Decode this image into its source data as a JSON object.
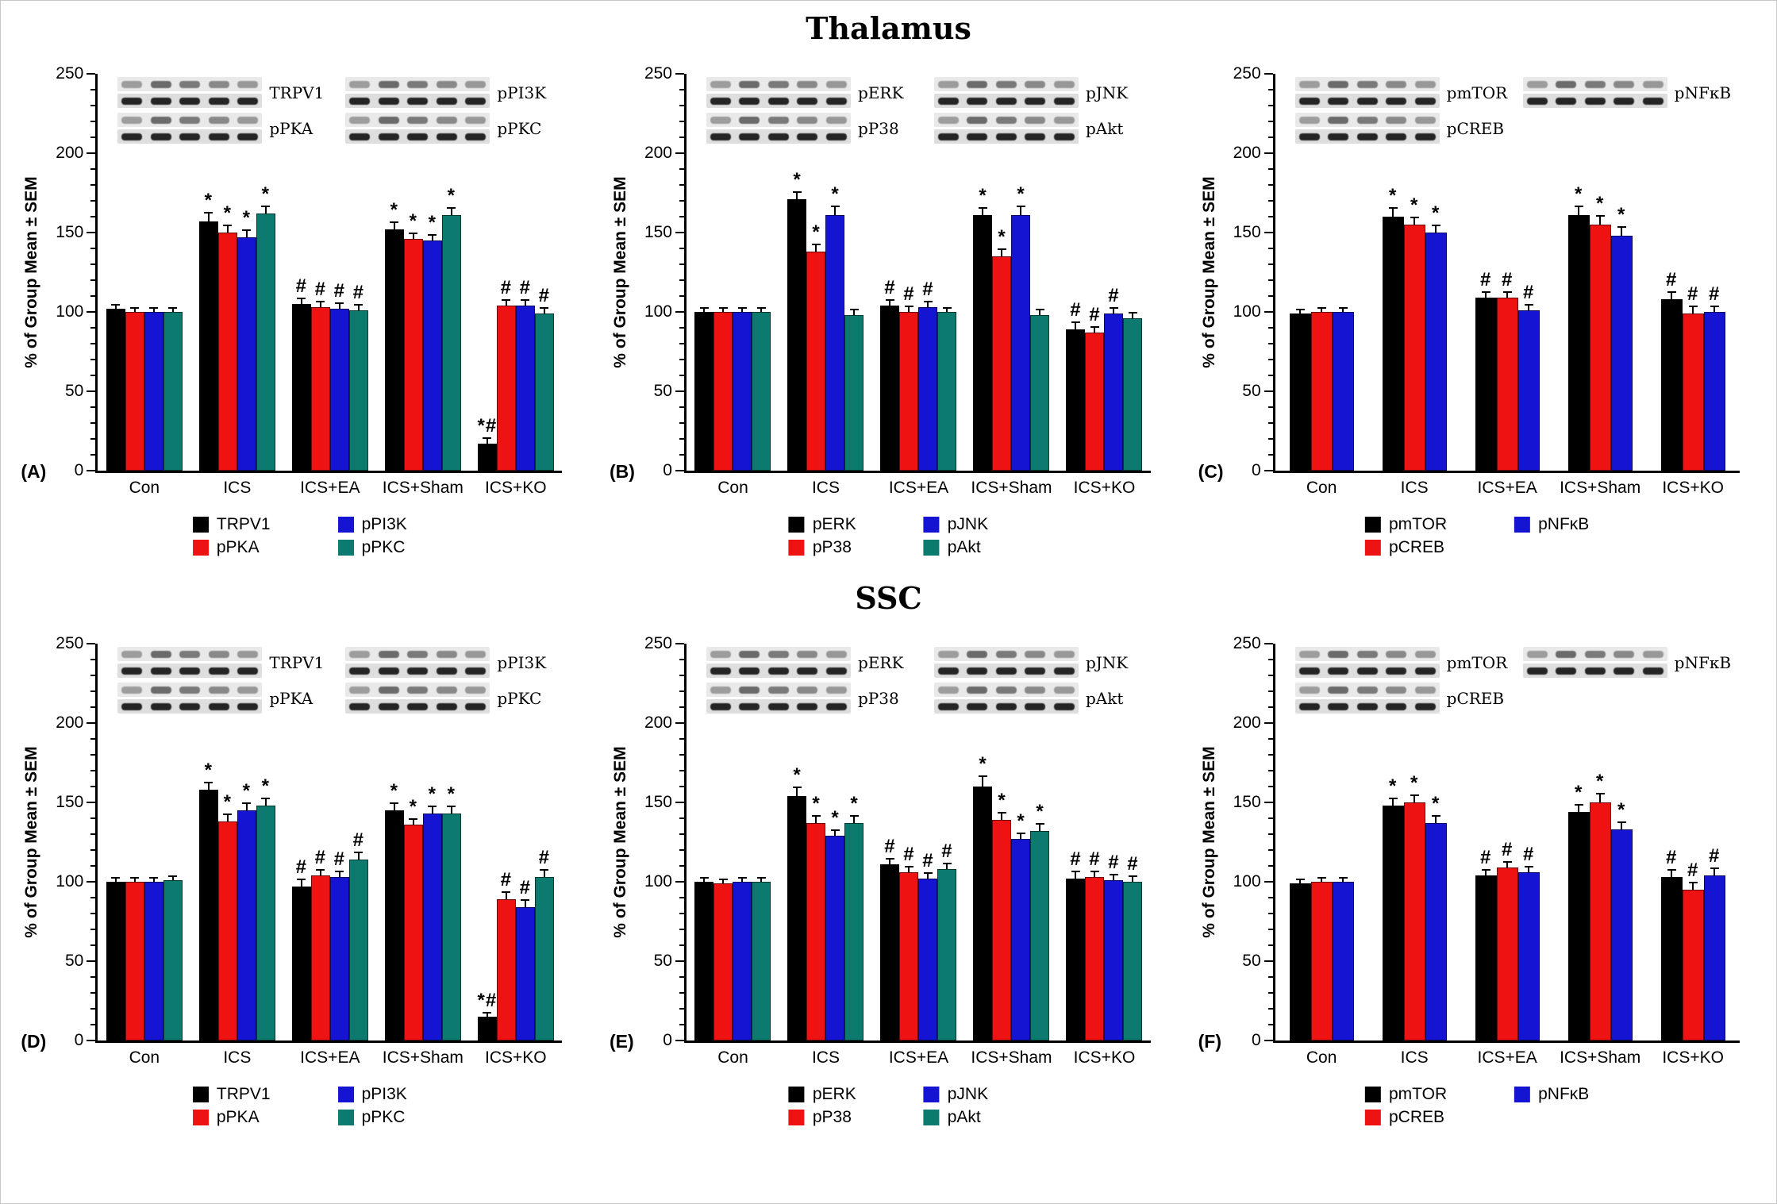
{
  "figure": {
    "section_titles": [
      "Thalamus",
      "SSC"
    ],
    "ylabel": "% of Group Mean ± SEM"
  },
  "colors": {
    "black": "#000000",
    "red": "#ee1312",
    "blue": "#1414d2",
    "teal": "#0c7a6e"
  },
  "chart_data": [
    {
      "panel": "(A)",
      "section": "Thalamus",
      "type": "bar",
      "categories": [
        "Con",
        "ICS",
        "ICS+EA",
        "ICS+Sham",
        "ICS+KO"
      ],
      "ylabel": "% of Group Mean ± SEM",
      "ylim": [
        0,
        250
      ],
      "yticks": [
        0,
        50,
        100,
        150,
        200,
        250
      ],
      "series": [
        {
          "name": "TRPV1",
          "color": "#000000",
          "values": [
            102,
            157,
            105,
            152,
            17
          ],
          "sem": [
            2,
            5,
            3,
            4,
            3
          ],
          "sig": [
            "",
            "*",
            "#",
            "*",
            "*#"
          ]
        },
        {
          "name": "pPKA",
          "color": "#ee1312",
          "values": [
            100,
            150,
            103,
            146,
            104
          ],
          "sem": [
            2,
            4,
            3,
            3,
            3
          ],
          "sig": [
            "",
            "*",
            "#",
            "*",
            "#"
          ]
        },
        {
          "name": "pPI3K",
          "color": "#1414d2",
          "values": [
            100,
            147,
            102,
            145,
            104
          ],
          "sem": [
            2,
            4,
            3,
            3,
            3
          ],
          "sig": [
            "",
            "*",
            "#",
            "*",
            "#"
          ]
        },
        {
          "name": "pPKC",
          "color": "#0c7a6e",
          "values": [
            100,
            162,
            101,
            161,
            99
          ],
          "sem": [
            2,
            4,
            3,
            4,
            3
          ],
          "sig": [
            "",
            "*",
            "#",
            "*",
            "#"
          ]
        }
      ],
      "blots": {
        "left": [
          {
            "label": "TRPV1"
          },
          {
            "label": "pPKA"
          }
        ],
        "right": [
          {
            "label": "pPI3K"
          },
          {
            "label": "pPKC"
          }
        ]
      }
    },
    {
      "panel": "(B)",
      "section": "Thalamus",
      "type": "bar",
      "categories": [
        "Con",
        "ICS",
        "ICS+EA",
        "ICS+Sham",
        "ICS+KO"
      ],
      "ylabel": "% of Group Mean ± SEM",
      "ylim": [
        0,
        250
      ],
      "yticks": [
        0,
        50,
        100,
        150,
        200,
        250
      ],
      "series": [
        {
          "name": "pERK",
          "color": "#000000",
          "values": [
            100,
            171,
            104,
            161,
            89
          ],
          "sem": [
            2,
            4,
            3,
            4,
            4
          ],
          "sig": [
            "",
            "*",
            "#",
            "*",
            "#"
          ]
        },
        {
          "name": "pP38",
          "color": "#ee1312",
          "values": [
            100,
            138,
            100,
            135,
            87
          ],
          "sem": [
            2,
            4,
            3,
            4,
            3
          ],
          "sig": [
            "",
            "*",
            "#",
            "*",
            "#"
          ]
        },
        {
          "name": "pJNK",
          "color": "#1414d2",
          "values": [
            100,
            161,
            103,
            161,
            99
          ],
          "sem": [
            2,
            5,
            3,
            5,
            3
          ],
          "sig": [
            "",
            "*",
            "#",
            "*",
            "#"
          ]
        },
        {
          "name": "pAkt",
          "color": "#0c7a6e",
          "values": [
            100,
            98,
            100,
            98,
            96
          ],
          "sem": [
            2,
            3,
            2,
            3,
            3
          ],
          "sig": [
            "",
            "",
            "",
            "",
            ""
          ]
        }
      ],
      "blots": {
        "left": [
          {
            "label": "pERK"
          },
          {
            "label": "pP38"
          }
        ],
        "right": [
          {
            "label": "pJNK"
          },
          {
            "label": "pAkt"
          }
        ]
      }
    },
    {
      "panel": "(C)",
      "section": "Thalamus",
      "type": "bar",
      "categories": [
        "Con",
        "ICS",
        "ICS+EA",
        "ICS+Sham",
        "ICS+KO"
      ],
      "ylabel": "% of Group Mean ± SEM",
      "ylim": [
        0,
        250
      ],
      "yticks": [
        0,
        50,
        100,
        150,
        200,
        250
      ],
      "series": [
        {
          "name": "pmTOR",
          "color": "#000000",
          "values": [
            99,
            160,
            109,
            161,
            108
          ],
          "sem": [
            2,
            5,
            3,
            5,
            4
          ],
          "sig": [
            "",
            "*",
            "#",
            "*",
            "#"
          ]
        },
        {
          "name": "pCREB",
          "color": "#ee1312",
          "values": [
            100,
            155,
            109,
            155,
            99
          ],
          "sem": [
            2,
            4,
            3,
            5,
            4
          ],
          "sig": [
            "",
            "*",
            "#",
            "*",
            "#"
          ]
        },
        {
          "name": "pNFκB",
          "color": "#1414d2",
          "values": [
            100,
            150,
            101,
            148,
            100
          ],
          "sem": [
            2,
            4,
            3,
            5,
            3
          ],
          "sig": [
            "",
            "*",
            "#",
            "*",
            "#"
          ]
        }
      ],
      "blots": {
        "left": [
          {
            "label": "pmTOR"
          },
          {
            "label": "pCREB"
          }
        ],
        "right": [
          {
            "label": "pNFκB"
          }
        ]
      }
    },
    {
      "panel": "(D)",
      "section": "SSC",
      "type": "bar",
      "categories": [
        "Con",
        "ICS",
        "ICS+EA",
        "ICS+Sham",
        "ICS+KO"
      ],
      "ylabel": "% of Group Mean ± SEM",
      "ylim": [
        0,
        250
      ],
      "yticks": [
        0,
        50,
        100,
        150,
        200,
        250
      ],
      "series": [
        {
          "name": "TRPV1",
          "color": "#000000",
          "values": [
            100,
            158,
            97,
            145,
            15
          ],
          "sem": [
            2,
            4,
            4,
            4,
            2
          ],
          "sig": [
            "",
            "*",
            "#",
            "*",
            "*#"
          ]
        },
        {
          "name": "pPKA",
          "color": "#ee1312",
          "values": [
            100,
            138,
            104,
            136,
            89
          ],
          "sem": [
            2,
            4,
            3,
            3,
            4
          ],
          "sig": [
            "",
            "*",
            "#",
            "*",
            "#"
          ]
        },
        {
          "name": "pPI3K",
          "color": "#1414d2",
          "values": [
            100,
            145,
            103,
            143,
            84
          ],
          "sem": [
            2,
            4,
            3,
            4,
            4
          ],
          "sig": [
            "",
            "*",
            "#",
            "*",
            "#"
          ]
        },
        {
          "name": "pPKC",
          "color": "#0c7a6e",
          "values": [
            101,
            148,
            114,
            143,
            103
          ],
          "sem": [
            2,
            4,
            4,
            4,
            4
          ],
          "sig": [
            "",
            "*",
            "#",
            "*",
            "#"
          ]
        }
      ],
      "blots": {
        "left": [
          {
            "label": "TRPV1"
          },
          {
            "label": "pPKA"
          }
        ],
        "right": [
          {
            "label": "pPI3K"
          },
          {
            "label": "pPKC"
          }
        ]
      }
    },
    {
      "panel": "(E)",
      "section": "SSC",
      "type": "bar",
      "categories": [
        "Con",
        "ICS",
        "ICS+EA",
        "ICS+Sham",
        "ICS+KO"
      ],
      "ylabel": "% of Group Mean ± SEM",
      "ylim": [
        0,
        250
      ],
      "yticks": [
        0,
        50,
        100,
        150,
        200,
        250
      ],
      "series": [
        {
          "name": "pERK",
          "color": "#000000",
          "values": [
            100,
            154,
            111,
            160,
            102
          ],
          "sem": [
            2,
            5,
            3,
            6,
            4
          ],
          "sig": [
            "",
            "*",
            "#",
            "*",
            "#"
          ]
        },
        {
          "name": "pP38",
          "color": "#ee1312",
          "values": [
            99,
            137,
            106,
            139,
            103
          ],
          "sem": [
            2,
            4,
            3,
            4,
            3
          ],
          "sig": [
            "",
            "*",
            "#",
            "*",
            "#"
          ]
        },
        {
          "name": "pJNK",
          "color": "#1414d2",
          "values": [
            100,
            129,
            102,
            127,
            101
          ],
          "sem": [
            2,
            3,
            3,
            3,
            3
          ],
          "sig": [
            "",
            "*",
            "#",
            "*",
            "#"
          ]
        },
        {
          "name": "pAkt",
          "color": "#0c7a6e",
          "values": [
            100,
            137,
            108,
            132,
            100
          ],
          "sem": [
            2,
            4,
            3,
            4,
            3
          ],
          "sig": [
            "",
            "*",
            "#",
            "*",
            "#"
          ]
        }
      ],
      "blots": {
        "left": [
          {
            "label": "pERK"
          },
          {
            "label": "pP38"
          }
        ],
        "right": [
          {
            "label": "pJNK"
          },
          {
            "label": "pAkt"
          }
        ]
      }
    },
    {
      "panel": "(F)",
      "section": "SSC",
      "type": "bar",
      "categories": [
        "Con",
        "ICS",
        "ICS+EA",
        "ICS+Sham",
        "ICS+KO"
      ],
      "ylabel": "% of Group Mean ± SEM",
      "ylim": [
        0,
        250
      ],
      "yticks": [
        0,
        50,
        100,
        150,
        200,
        250
      ],
      "series": [
        {
          "name": "pmTOR",
          "color": "#000000",
          "values": [
            99,
            148,
            104,
            144,
            103
          ],
          "sem": [
            2,
            4,
            3,
            4,
            4
          ],
          "sig": [
            "",
            "*",
            "#",
            "*",
            "#"
          ]
        },
        {
          "name": "pCREB",
          "color": "#ee1312",
          "values": [
            100,
            150,
            109,
            150,
            95
          ],
          "sem": [
            2,
            4,
            3,
            5,
            4
          ],
          "sig": [
            "",
            "*",
            "#",
            "*",
            "#"
          ]
        },
        {
          "name": "pNFκB",
          "color": "#1414d2",
          "values": [
            100,
            137,
            106,
            133,
            104
          ],
          "sem": [
            2,
            4,
            3,
            4,
            4
          ],
          "sig": [
            "",
            "*",
            "#",
            "*",
            "#"
          ]
        }
      ],
      "blots": {
        "left": [
          {
            "label": "pmTOR"
          },
          {
            "label": "pCREB"
          }
        ],
        "right": [
          {
            "label": "pNFκB"
          }
        ]
      }
    }
  ]
}
